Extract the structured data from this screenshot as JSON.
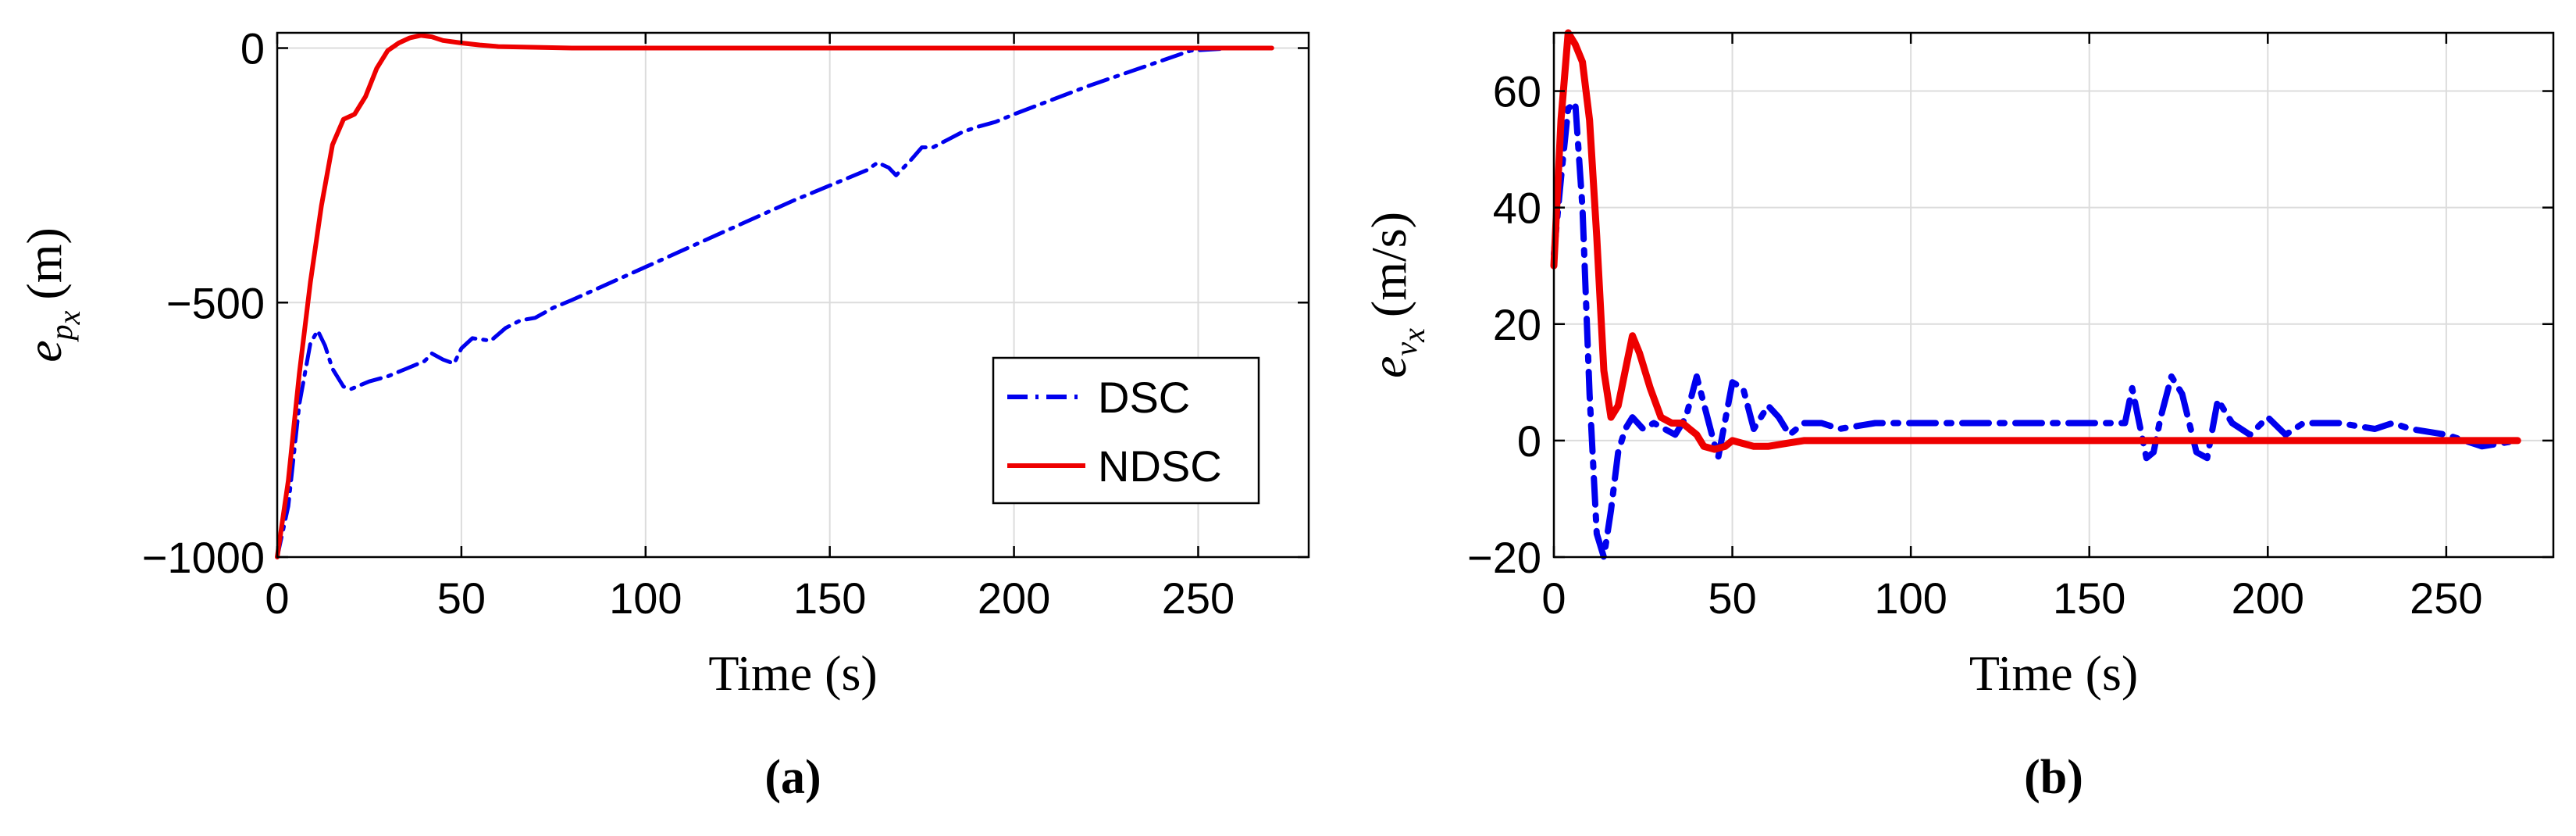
{
  "chart_data": [
    {
      "type": "line",
      "panel_label": "(a)",
      "xlabel": "Time (s)",
      "ylabel": {
        "main": "e",
        "sub_main": "p",
        "sub_sub": "x",
        "unit": "(m)"
      },
      "xlim": [
        0,
        280
      ],
      "ylim": [
        -1000,
        30
      ],
      "xticks": [
        0,
        50,
        100,
        150,
        200,
        250
      ],
      "yticks": [
        0,
        -500,
        -1000
      ],
      "xtick_labels": [
        "0",
        "50",
        "100",
        "150",
        "200",
        "250"
      ],
      "ytick_labels": [
        "0",
        "-500",
        "-1000"
      ],
      "grid": true,
      "legend": {
        "position": "lower-right",
        "entries": [
          "DSC",
          "NDSC"
        ]
      },
      "series": [
        {
          "name": "DSC",
          "color": "#0000ee",
          "style": "dashdot",
          "x": [
            0,
            3,
            6,
            9,
            11,
            13,
            15,
            18,
            20,
            25,
            30,
            35,
            40,
            42,
            45,
            48,
            50,
            53,
            58,
            62,
            66,
            70,
            75,
            80,
            100,
            120,
            140,
            160,
            163,
            166,
            168,
            172,
            175,
            178,
            182,
            186,
            190,
            195,
            200,
            220,
            240,
            248,
            260,
            270
          ],
          "y": [
            -1000,
            -900,
            -700,
            -580,
            -555,
            -585,
            -630,
            -665,
            -670,
            -655,
            -645,
            -630,
            -615,
            -600,
            -612,
            -620,
            -590,
            -570,
            -575,
            -550,
            -535,
            -530,
            -510,
            -495,
            -430,
            -365,
            -300,
            -240,
            -225,
            -235,
            -250,
            -220,
            -195,
            -195,
            -180,
            -165,
            -155,
            -145,
            -130,
            -75,
            -25,
            -5,
            0,
            0
          ]
        },
        {
          "name": "NDSC",
          "color": "#ee0000",
          "style": "solid",
          "x": [
            0,
            3,
            6,
            9,
            12,
            15,
            18,
            21,
            24,
            27,
            30,
            33,
            36,
            39,
            42,
            45,
            50,
            55,
            60,
            80,
            100,
            150,
            200,
            250,
            270
          ],
          "y": [
            -1000,
            -850,
            -640,
            -460,
            -310,
            -190,
            -140,
            -130,
            -95,
            -40,
            -5,
            10,
            20,
            25,
            22,
            15,
            10,
            6,
            3,
            0,
            0,
            0,
            0,
            0,
            0
          ]
        }
      ]
    },
    {
      "type": "line",
      "panel_label": "(b)",
      "xlabel": "Time (s)",
      "ylabel": {
        "main": "e",
        "sub_main": "v",
        "sub_sub": "x",
        "unit": "(m/s)"
      },
      "xlim": [
        0,
        280
      ],
      "ylim": [
        -20,
        70
      ],
      "xticks": [
        0,
        50,
        100,
        150,
        200,
        250
      ],
      "yticks": [
        60,
        40,
        20,
        0,
        -20
      ],
      "xtick_labels": [
        "0",
        "50",
        "100",
        "150",
        "200",
        "250"
      ],
      "ytick_labels": [
        "60",
        "40",
        "20",
        "0",
        "-20"
      ],
      "grid": true,
      "series": [
        {
          "name": "DSC",
          "color": "#0000ee",
          "style": "dashdot",
          "x": [
            0,
            2,
            4,
            6,
            8,
            10,
            12,
            14,
            16,
            18,
            20,
            22,
            25,
            28,
            31,
            34,
            37,
            40,
            43,
            46,
            50,
            53,
            56,
            60,
            63,
            66,
            70,
            75,
            80,
            90,
            100,
            120,
            140,
            160,
            162,
            164,
            166,
            168,
            170,
            173,
            176,
            180,
            183,
            186,
            190,
            195,
            200,
            205,
            210,
            220,
            230,
            235,
            240,
            250,
            260,
            270
          ],
          "y": [
            32,
            45,
            57,
            58,
            40,
            8,
            -16,
            -20,
            -12,
            -2,
            2,
            4,
            2,
            3,
            2,
            1,
            4,
            11,
            4,
            -3,
            10,
            9,
            2,
            6,
            4,
            1,
            3,
            3,
            2,
            3,
            3,
            3,
            3,
            3,
            9,
            3,
            -3,
            -2,
            4,
            11,
            8,
            -2,
            -3,
            7,
            3,
            1,
            4,
            1,
            3,
            3,
            2,
            3,
            2,
            1,
            -1,
            0
          ]
        },
        {
          "name": "NDSC",
          "color": "#ee0000",
          "style": "solid",
          "x": [
            0,
            2,
            4,
            6,
            8,
            10,
            12,
            14,
            16,
            18,
            20,
            22,
            24,
            27,
            30,
            33,
            36,
            38,
            40,
            42,
            45,
            48,
            50,
            53,
            56,
            60,
            65,
            70,
            80,
            100,
            150,
            200,
            250,
            270
          ],
          "y": [
            30,
            55,
            70,
            68,
            65,
            55,
            35,
            12,
            4,
            6,
            12,
            18,
            15,
            9,
            4,
            3,
            3,
            2,
            1,
            -1,
            -1.5,
            -1,
            0,
            -0.5,
            -1,
            -1,
            -0.5,
            0,
            0,
            0,
            0,
            0,
            0,
            0
          ]
        }
      ]
    }
  ]
}
